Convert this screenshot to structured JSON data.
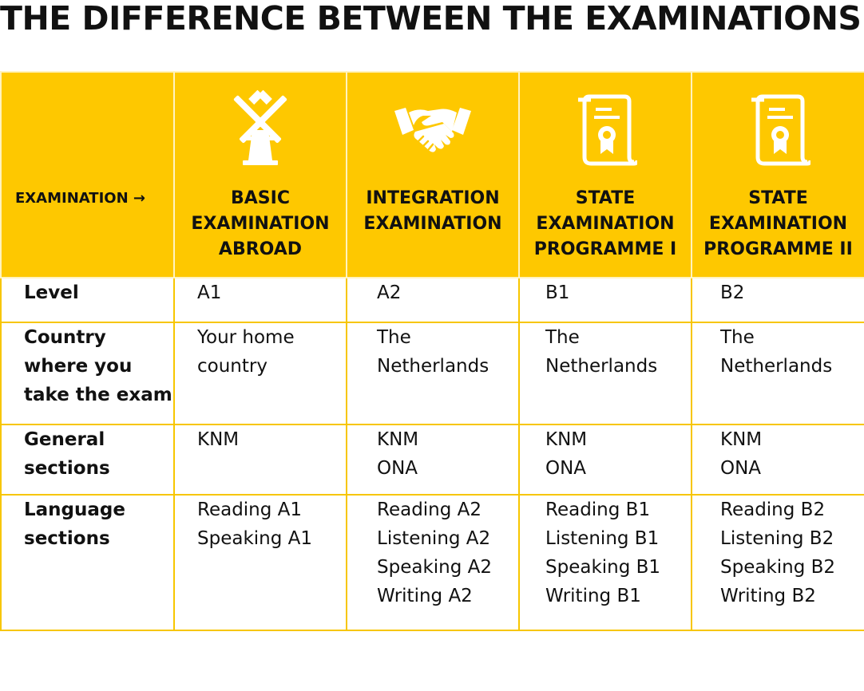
{
  "title": "THE DIFFERENCE BETWEEN THE EXAMINATIONS",
  "header": {
    "corner_label": "EXAMINATION →",
    "columns": [
      {
        "label_lines": [
          "BASIC",
          "EXAMINATION",
          "ABROAD"
        ],
        "icon": "windmill-icon"
      },
      {
        "label_lines": [
          "INTEGRATION",
          "EXAMINATION"
        ],
        "icon": "handshake-icon"
      },
      {
        "label_lines": [
          "STATE",
          "EXAMINATION",
          "PROGRAMME I"
        ],
        "icon": "certificate-icon"
      },
      {
        "label_lines": [
          "STATE",
          "EXAMINATION",
          "PROGRAMME II"
        ],
        "icon": "certificate-icon"
      }
    ]
  },
  "rows": [
    {
      "label_lines": [
        "Level"
      ],
      "cells": [
        [
          "A1"
        ],
        [
          "A2"
        ],
        [
          "B1"
        ],
        [
          "B2"
        ]
      ]
    },
    {
      "label_lines": [
        "Country",
        "where you",
        "take the exam"
      ],
      "cells": [
        [
          "Your home",
          "country"
        ],
        [
          "The",
          "Netherlands"
        ],
        [
          "The",
          "Netherlands"
        ],
        [
          "The",
          "Netherlands"
        ]
      ]
    },
    {
      "label_lines": [
        "General",
        "sections"
      ],
      "cells": [
        [
          "KNM"
        ],
        [
          "KNM",
          "ONA"
        ],
        [
          "KNM",
          "ONA"
        ],
        [
          "KNM",
          "ONA"
        ]
      ]
    },
    {
      "label_lines": [
        "Language",
        "sections"
      ],
      "cells": [
        [
          "Reading A1",
          "Speaking A1"
        ],
        [
          "Reading A2",
          "Listening A2",
          "Speaking A2",
          "Writing A2"
        ],
        [
          "Reading B1",
          "Listening B1",
          "Speaking B1",
          "Writing B1"
        ],
        [
          "Reading B2",
          "Listening B2",
          "Speaking B2",
          "Writing B2"
        ]
      ]
    }
  ],
  "colors": {
    "header_bg": "#fec800",
    "border": "#f7c600",
    "text": "#111111",
    "icon": "#ffffff"
  }
}
